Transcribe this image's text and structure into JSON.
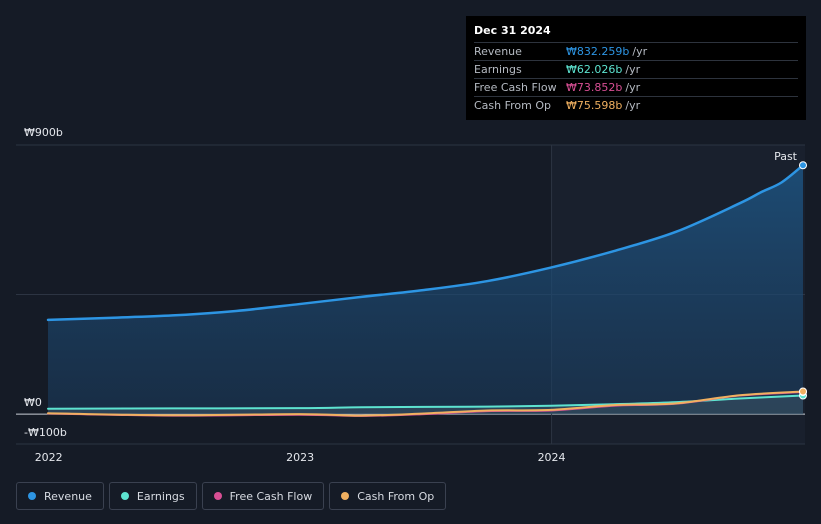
{
  "tooltip": {
    "date": "Dec 31 2024",
    "rows": [
      {
        "label": "Revenue",
        "value": "₩832.259b",
        "unit": "/yr",
        "color": "#2d95e3"
      },
      {
        "label": "Earnings",
        "value": "₩62.026b",
        "unit": "/yr",
        "color": "#5de3d0"
      },
      {
        "label": "Free Cash Flow",
        "value": "₩73.852b",
        "unit": "/yr",
        "color": "#d84f94"
      },
      {
        "label": "Cash From Op",
        "value": "₩75.598b",
        "unit": "/yr",
        "color": "#f0b060"
      }
    ]
  },
  "legend": [
    {
      "label": "Revenue",
      "color": "#2d95e3"
    },
    {
      "label": "Earnings",
      "color": "#5de3d0"
    },
    {
      "label": "Free Cash Flow",
      "color": "#d84f94"
    },
    {
      "label": "Cash From Op",
      "color": "#f0b060"
    }
  ],
  "chart_data": {
    "type": "line",
    "y_tick_labels": [
      "₩900b",
      "₩0",
      "-₩100b"
    ],
    "x_tick_labels": [
      "2022",
      "2023",
      "2024"
    ],
    "past_label": "Past",
    "ylim": [
      -100,
      900
    ],
    "x_range": [
      "2021-12-31",
      "2024-12-31"
    ],
    "forecast_start": "2024-01-01",
    "grid": true,
    "legend_position": "bottom-left",
    "series": [
      {
        "name": "Revenue",
        "color": "#2d95e3",
        "fill": true,
        "points": [
          [
            "2021-12-31",
            315
          ],
          [
            "2022-03-31",
            322
          ],
          [
            "2022-06-30",
            330
          ],
          [
            "2022-09-30",
            345
          ],
          [
            "2022-12-31",
            368
          ],
          [
            "2023-03-31",
            392
          ],
          [
            "2023-06-30",
            415
          ],
          [
            "2023-09-30",
            445
          ],
          [
            "2023-12-31",
            490
          ],
          [
            "2024-03-31",
            545
          ],
          [
            "2024-06-30",
            610
          ],
          [
            "2024-09-30",
            705
          ],
          [
            "2024-10-31",
            742
          ],
          [
            "2024-11-30",
            775
          ],
          [
            "2024-12-31",
            832.259
          ]
        ]
      },
      {
        "name": "Earnings",
        "color": "#5de3d0",
        "fill": false,
        "points": [
          [
            "2021-12-31",
            18
          ],
          [
            "2022-06-30",
            19
          ],
          [
            "2022-12-31",
            20
          ],
          [
            "2023-03-31",
            23
          ],
          [
            "2023-06-30",
            24
          ],
          [
            "2023-09-30",
            25
          ],
          [
            "2023-12-31",
            28
          ],
          [
            "2024-03-31",
            33
          ],
          [
            "2024-06-30",
            40
          ],
          [
            "2024-09-30",
            52
          ],
          [
            "2024-12-31",
            62.026
          ]
        ]
      },
      {
        "name": "Free Cash Flow",
        "color": "#d84f94",
        "fill": false,
        "points": [
          [
            "2021-12-31",
            2
          ],
          [
            "2022-06-30",
            -5
          ],
          [
            "2022-12-31",
            -2
          ],
          [
            "2023-03-31",
            -6
          ],
          [
            "2023-06-30",
            0
          ],
          [
            "2023-09-30",
            10
          ],
          [
            "2023-12-31",
            12
          ],
          [
            "2024-03-31",
            28
          ],
          [
            "2024-06-30",
            35
          ],
          [
            "2024-09-30",
            62
          ],
          [
            "2024-12-31",
            73.852
          ]
        ]
      },
      {
        "name": "Cash From Op",
        "color": "#f0b060",
        "fill": false,
        "points": [
          [
            "2021-12-31",
            3
          ],
          [
            "2022-06-30",
            -4
          ],
          [
            "2022-12-31",
            0
          ],
          [
            "2023-03-31",
            -5
          ],
          [
            "2023-06-30",
            2
          ],
          [
            "2023-09-30",
            12
          ],
          [
            "2023-12-31",
            14
          ],
          [
            "2024-03-31",
            30
          ],
          [
            "2024-06-30",
            36
          ],
          [
            "2024-09-30",
            63
          ],
          [
            "2024-12-31",
            75.598
          ]
        ]
      }
    ]
  }
}
